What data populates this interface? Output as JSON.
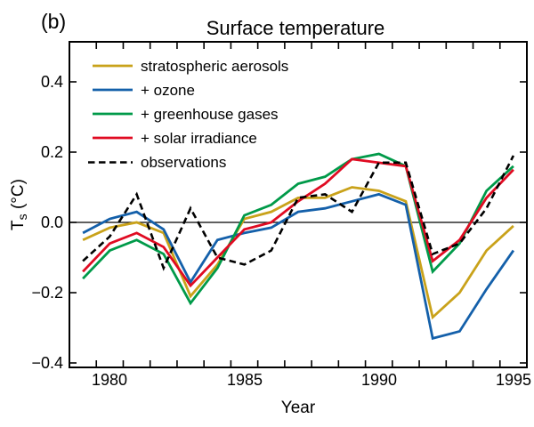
{
  "panel_label": "(b)",
  "title": "Surface temperature",
  "xlabel": "Year",
  "ylabel": {
    "main": "T",
    "sub": "s",
    "unit": " (°C)"
  },
  "colors": {
    "aerosols": "#c9a21a",
    "ozone": "#1460aa",
    "greenhouse": "#009a49",
    "solar": "#e00b22",
    "observations": "#000000",
    "axis": "#000000",
    "background": "#ffffff"
  },
  "chart_data": {
    "type": "line",
    "title": "Surface temperature",
    "xlabel": "Year",
    "ylabel": "Ts (°C)",
    "xlim": [
      1979,
      1996
    ],
    "ylim": [
      -0.413,
      0.513
    ],
    "grid": false,
    "zero_line": true,
    "legend_position": "top-left",
    "xticks": [
      1980,
      1981,
      1982,
      1983,
      1984,
      1985,
      1986,
      1987,
      1988,
      1989,
      1990,
      1991,
      1992,
      1993,
      1994,
      1995
    ],
    "xtick_labels": [
      "1980",
      "1985",
      "1990",
      "1995"
    ],
    "xtick_labeled_years": [
      1980,
      1985,
      1990,
      1995
    ],
    "yticks": [
      0.4,
      0.2,
      0.0,
      -0.2,
      -0.4
    ],
    "ytick_labels": [
      "0.4",
      "0.2",
      "0.0",
      "−0.2",
      "−0.4"
    ],
    "x": [
      1979,
      1980,
      1981,
      1982,
      1983,
      1984,
      1985,
      1986,
      1987,
      1988,
      1989,
      1990,
      1991,
      1992,
      1993,
      1994,
      1995
    ],
    "series": [
      {
        "name": "stratospheric  aerosols",
        "color": "#c9a21a",
        "dash": null,
        "values": [
          -0.05,
          -0.015,
          0.0,
          -0.03,
          -0.21,
          -0.12,
          0.01,
          0.03,
          0.07,
          0.07,
          0.1,
          0.09,
          0.06,
          -0.27,
          -0.2,
          -0.08,
          -0.01
        ]
      },
      {
        "name": "+ ozone",
        "color": "#1460aa",
        "dash": null,
        "values": [
          -0.03,
          0.01,
          0.03,
          -0.02,
          -0.17,
          -0.05,
          -0.03,
          -0.015,
          0.03,
          0.04,
          0.06,
          0.08,
          0.05,
          -0.33,
          -0.31,
          -0.19,
          -0.08
        ]
      },
      {
        "name": "+ greenhouse gases",
        "color": "#009a49",
        "dash": null,
        "values": [
          -0.16,
          -0.08,
          -0.05,
          -0.09,
          -0.23,
          -0.13,
          0.02,
          0.05,
          0.11,
          0.13,
          0.18,
          0.195,
          0.16,
          -0.14,
          -0.06,
          0.09,
          0.16
        ]
      },
      {
        "name": "+ solar irradiance",
        "color": "#e00b22",
        "dash": null,
        "values": [
          -0.14,
          -0.06,
          -0.03,
          -0.07,
          -0.18,
          -0.1,
          -0.02,
          0.0,
          0.06,
          0.11,
          0.18,
          0.17,
          0.16,
          -0.11,
          -0.05,
          0.07,
          0.15
        ]
      },
      {
        "name": "observations",
        "color": "#000000",
        "dash": [
          7.5,
          4.5
        ],
        "values": [
          -0.11,
          -0.04,
          0.08,
          -0.13,
          0.04,
          -0.1,
          -0.12,
          -0.08,
          0.07,
          0.08,
          0.03,
          0.17,
          0.17,
          -0.09,
          -0.06,
          0.04,
          0.19
        ]
      }
    ]
  }
}
